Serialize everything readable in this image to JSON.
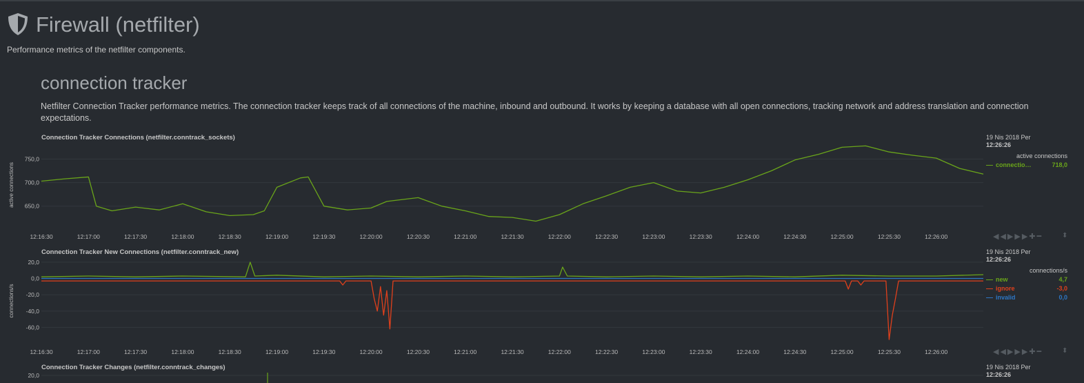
{
  "page": {
    "title": "Firewall (netfilter)",
    "description": "Performance metrics of the netfilter components."
  },
  "section": {
    "title": "connection tracker",
    "description": "Netfilter Connection Tracker performance metrics. The connection tracker keeps track of all connections of the machine, inbound and outbound. It works by keeping a database with all open connections, tracking network and address translation and connection expectations."
  },
  "toolbar": {
    "icons": [
      "rewind-icon",
      "play-icon",
      "forward-icon",
      "zoom-in-icon",
      "zoom-out-icon",
      "resize-icon"
    ]
  },
  "colors": {
    "green": "#6aa51a",
    "red": "#e0401c",
    "blue": "#2d76c4",
    "background": "#272b30"
  },
  "chart_data": [
    {
      "type": "line",
      "title": "Connection Tracker Connections (netfilter.conntrack_sockets)",
      "ylabel": "active connections",
      "units": "active connections",
      "ylim": [
        610,
        780
      ],
      "yticks": [
        650,
        700,
        750
      ],
      "ytick_labels": [
        "650,0",
        "700,0",
        "750,0"
      ],
      "x_ticks": [
        "12:16:30",
        "12:17:00",
        "12:17:30",
        "12:18:00",
        "12:18:30",
        "12:19:00",
        "12:19:30",
        "12:20:00",
        "12:20:30",
        "12:21:00",
        "12:21:30",
        "12:22:00",
        "12:22:30",
        "12:23:00",
        "12:23:30",
        "12:24:00",
        "12:24:30",
        "12:25:00",
        "12:25:30",
        "12:26:00"
      ],
      "x": [
        "12:16:30",
        "12:16:45",
        "12:17:00",
        "12:17:05",
        "12:17:15",
        "12:17:30",
        "12:17:45",
        "12:18:00",
        "12:18:15",
        "12:18:30",
        "12:18:45",
        "12:18:52",
        "12:19:00",
        "12:19:15",
        "12:19:20",
        "12:19:30",
        "12:19:45",
        "12:20:00",
        "12:20:10",
        "12:20:30",
        "12:20:45",
        "12:21:00",
        "12:21:15",
        "12:21:30",
        "12:21:45",
        "12:22:00",
        "12:22:15",
        "12:22:30",
        "12:22:45",
        "12:23:00",
        "12:23:15",
        "12:23:30",
        "12:23:45",
        "12:24:00",
        "12:24:15",
        "12:24:30",
        "12:24:45",
        "12:25:00",
        "12:25:15",
        "12:25:30",
        "12:25:45",
        "12:26:00",
        "12:26:15",
        "12:26:30"
      ],
      "series": [
        {
          "name": "connections",
          "color": "#6aa51a",
          "values": [
            703,
            708,
            712,
            650,
            640,
            648,
            642,
            655,
            638,
            630,
            632,
            640,
            690,
            710,
            712,
            650,
            642,
            646,
            660,
            668,
            650,
            640,
            628,
            626,
            618,
            632,
            655,
            672,
            690,
            700,
            682,
            678,
            690,
            706,
            725,
            748,
            760,
            775,
            778,
            765,
            758,
            752,
            730,
            718
          ]
        }
      ],
      "legend": {
        "date": "19 Nis 2018 Per",
        "time": "12:26:26",
        "units": "active connections",
        "items": [
          {
            "name": "connectio…",
            "value": "718,0",
            "color": "#6aa51a"
          }
        ]
      }
    },
    {
      "type": "line",
      "title": "Connection Tracker New Connections (netfilter.conntrack_new)",
      "ylabel": "connections/s",
      "units": "connections/s",
      "ylim": [
        -80,
        25
      ],
      "yticks": [
        20,
        0,
        -20,
        -40,
        -60
      ],
      "ytick_labels": [
        "20,0",
        "0,0",
        "-20,0",
        "-40,0",
        "-60,0"
      ],
      "x_ticks": [
        "12:16:30",
        "12:17:00",
        "12:17:30",
        "12:18:00",
        "12:18:30",
        "12:19:00",
        "12:19:30",
        "12:20:00",
        "12:20:30",
        "12:21:00",
        "12:21:30",
        "12:22:00",
        "12:22:30",
        "12:23:00",
        "12:23:30",
        "12:24:00",
        "12:24:30",
        "12:25:00",
        "12:25:30",
        "12:26:00"
      ],
      "x": [
        "12:16:30",
        "12:17:00",
        "12:17:30",
        "12:18:00",
        "12:18:40",
        "12:18:43",
        "12:18:46",
        "12:19:00",
        "12:19:30",
        "12:20:00",
        "12:20:30",
        "12:21:00",
        "12:21:30",
        "12:22:00",
        "12:22:02",
        "12:22:05",
        "12:22:30",
        "12:23:00",
        "12:23:30",
        "12:24:00",
        "12:24:30",
        "12:25:00",
        "12:25:30",
        "12:26:00",
        "12:26:30"
      ],
      "series": [
        {
          "name": "new",
          "color": "#6aa51a",
          "values": [
            2,
            3,
            2,
            3,
            2,
            20,
            3,
            4,
            2,
            3,
            2,
            3,
            2,
            3,
            14,
            3,
            2,
            3,
            2,
            3,
            2,
            4,
            3,
            3,
            4.7
          ]
        },
        {
          "name": "ignore",
          "color": "#e0401c",
          "x": [
            "12:16:30",
            "12:19:40",
            "12:19:42",
            "12:19:44",
            "12:20:00",
            "12:20:02",
            "12:20:04",
            "12:20:06",
            "12:20:08",
            "12:20:10",
            "12:20:12",
            "12:20:14",
            "12:20:16",
            "12:20:18",
            "12:20:30",
            "12:25:02",
            "12:25:04",
            "12:25:06",
            "12:25:10",
            "12:25:12",
            "12:25:14",
            "12:25:28",
            "12:25:30",
            "12:25:32",
            "12:25:34",
            "12:25:36",
            "12:26:30"
          ],
          "values": [
            -3,
            -3,
            -8,
            -3,
            -3,
            -25,
            -40,
            -10,
            -45,
            -15,
            -62,
            -3,
            -3,
            -3,
            -3,
            -3,
            -13,
            -3,
            -3,
            -8,
            -3,
            -3,
            -75,
            -45,
            -25,
            -3,
            -3
          ]
        },
        {
          "name": "invalid",
          "color": "#2d76c4",
          "values": [
            0,
            0,
            0,
            0,
            0,
            0,
            0,
            0,
            0,
            0,
            0,
            0,
            0,
            0,
            0,
            0,
            0,
            0,
            0,
            0,
            0,
            0,
            0,
            0,
            0
          ]
        }
      ],
      "legend": {
        "date": "19 Nis 2018 Per",
        "time": "12:26:26",
        "units": "connections/s",
        "items": [
          {
            "name": "new",
            "value": "4,7",
            "color": "#6aa51a"
          },
          {
            "name": "ignore",
            "value": "-3,0",
            "color": "#e0401c"
          },
          {
            "name": "invalid",
            "value": "0,0",
            "color": "#2d76c4"
          }
        ]
      }
    },
    {
      "type": "line",
      "title": "Connection Tracker Changes (netfilter.conntrack_changes)",
      "ytick_labels": [
        "20,0"
      ],
      "legend": {
        "date": "19 Nis 2018 Per",
        "time": "12:26:26"
      }
    }
  ]
}
